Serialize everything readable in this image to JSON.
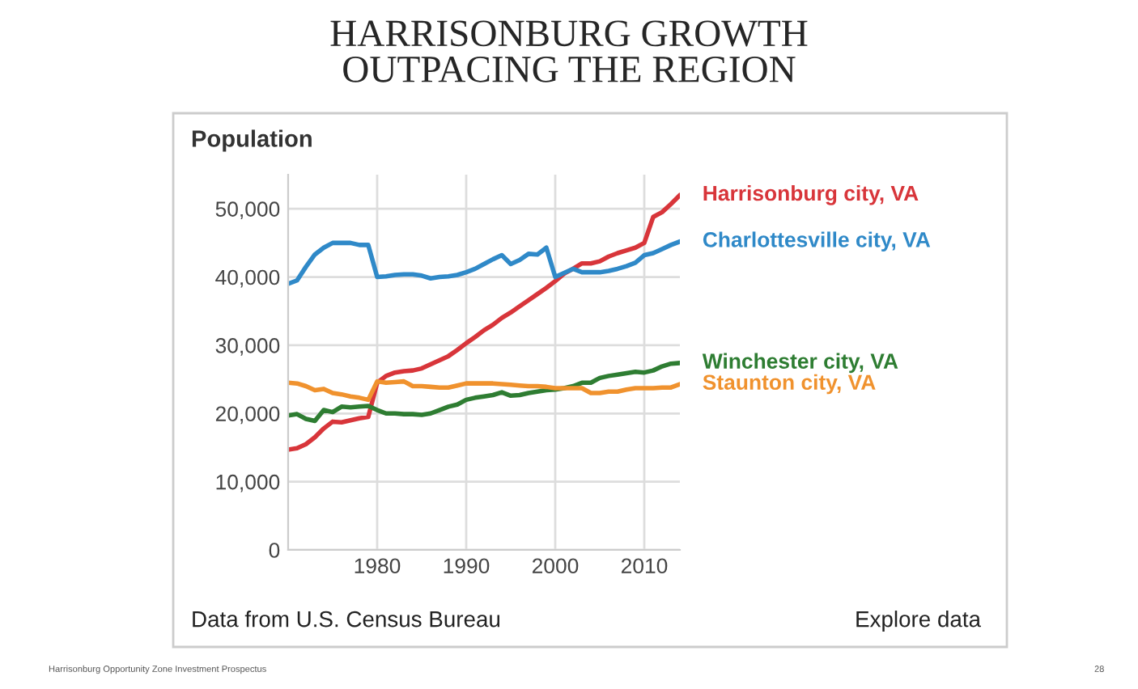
{
  "chart_data": {
    "type": "line",
    "title": "HARRISONBURG GROWTH\nOUTPACING THE REGION",
    "ylabel": "Population",
    "x": [
      1970,
      1971,
      1972,
      1973,
      1974,
      1975,
      1976,
      1977,
      1978,
      1979,
      1980,
      1981,
      1982,
      1983,
      1984,
      1985,
      1986,
      1987,
      1988,
      1989,
      1990,
      1991,
      1992,
      1993,
      1994,
      1995,
      1996,
      1997,
      1998,
      1999,
      2000,
      2001,
      2002,
      2003,
      2004,
      2005,
      2006,
      2007,
      2008,
      2009,
      2010,
      2011,
      2012,
      2013,
      2014
    ],
    "series": [
      {
        "name": "Harrisonburg city, VA",
        "color": "#d8353a",
        "values": [
          14700,
          14900,
          15500,
          16500,
          17800,
          18800,
          18700,
          19000,
          19300,
          19500,
          24500,
          25500,
          26000,
          26200,
          26300,
          26600,
          27200,
          27800,
          28400,
          29300,
          30300,
          31200,
          32200,
          33000,
          34000,
          34800,
          35700,
          36600,
          37500,
          38400,
          39400,
          40500,
          41200,
          42000,
          42000,
          42300,
          43000,
          43500,
          43900,
          44300,
          45000,
          48800,
          49500,
          50700,
          52000
        ]
      },
      {
        "name": "Charlottesville city, VA",
        "color": "#2f89c8",
        "values": [
          39000,
          39500,
          41500,
          43300,
          44300,
          45000,
          45000,
          45000,
          44700,
          44700,
          40000,
          40100,
          40300,
          40400,
          40400,
          40200,
          39800,
          40000,
          40100,
          40300,
          40700,
          41200,
          41900,
          42600,
          43200,
          41900,
          42500,
          43400,
          43300,
          44300,
          40000,
          40600,
          41200,
          40700,
          40700,
          40700,
          40900,
          41200,
          41600,
          42100,
          43200,
          43500,
          44100,
          44700,
          45200
        ]
      },
      {
        "name": "Winchester city, VA",
        "color": "#2e7d32",
        "values": [
          19700,
          19900,
          19200,
          18900,
          20500,
          20200,
          21000,
          20900,
          21000,
          21100,
          20500,
          20000,
          20000,
          19900,
          19900,
          19800,
          20000,
          20500,
          21000,
          21300,
          22000,
          22300,
          22500,
          22700,
          23100,
          22600,
          22700,
          23000,
          23200,
          23400,
          23500,
          23700,
          24000,
          24500,
          24500,
          25200,
          25500,
          25700,
          25900,
          26100,
          26000,
          26300,
          26900,
          27300,
          27400
        ]
      },
      {
        "name": "Staunton city, VA",
        "color": "#f0922e",
        "values": [
          24500,
          24400,
          24000,
          23400,
          23600,
          23000,
          22800,
          22500,
          22300,
          22000,
          24700,
          24500,
          24600,
          24700,
          24000,
          24000,
          23900,
          23800,
          23800,
          24100,
          24400,
          24400,
          24400,
          24400,
          24300,
          24200,
          24100,
          24000,
          24000,
          23900,
          23700,
          23700,
          23700,
          23700,
          23000,
          23000,
          23200,
          23200,
          23500,
          23700,
          23700,
          23700,
          23800,
          23800,
          24300
        ]
      }
    ],
    "xlim": [
      1970,
      2014
    ],
    "xticks": [
      1980,
      1990,
      2000,
      2010
    ],
    "ylim": [
      0,
      55000
    ],
    "yticks": [
      0,
      {
        "value": 10000,
        "label": "10,000"
      },
      {
        "value": 20000,
        "label": "20,000"
      },
      {
        "value": 30000,
        "label": "30,000"
      },
      {
        "value": 40000,
        "label": "40,000"
      },
      {
        "value": 50000,
        "label": "50,000"
      }
    ],
    "grid": true,
    "legend": false,
    "marker": "none",
    "line_style": "solid",
    "annotations": [
      "Data from U.S. Census Bureau",
      "Explore data",
      "Harrisonburg Opportunity Zone Investment Prospectus",
      "28"
    ]
  }
}
